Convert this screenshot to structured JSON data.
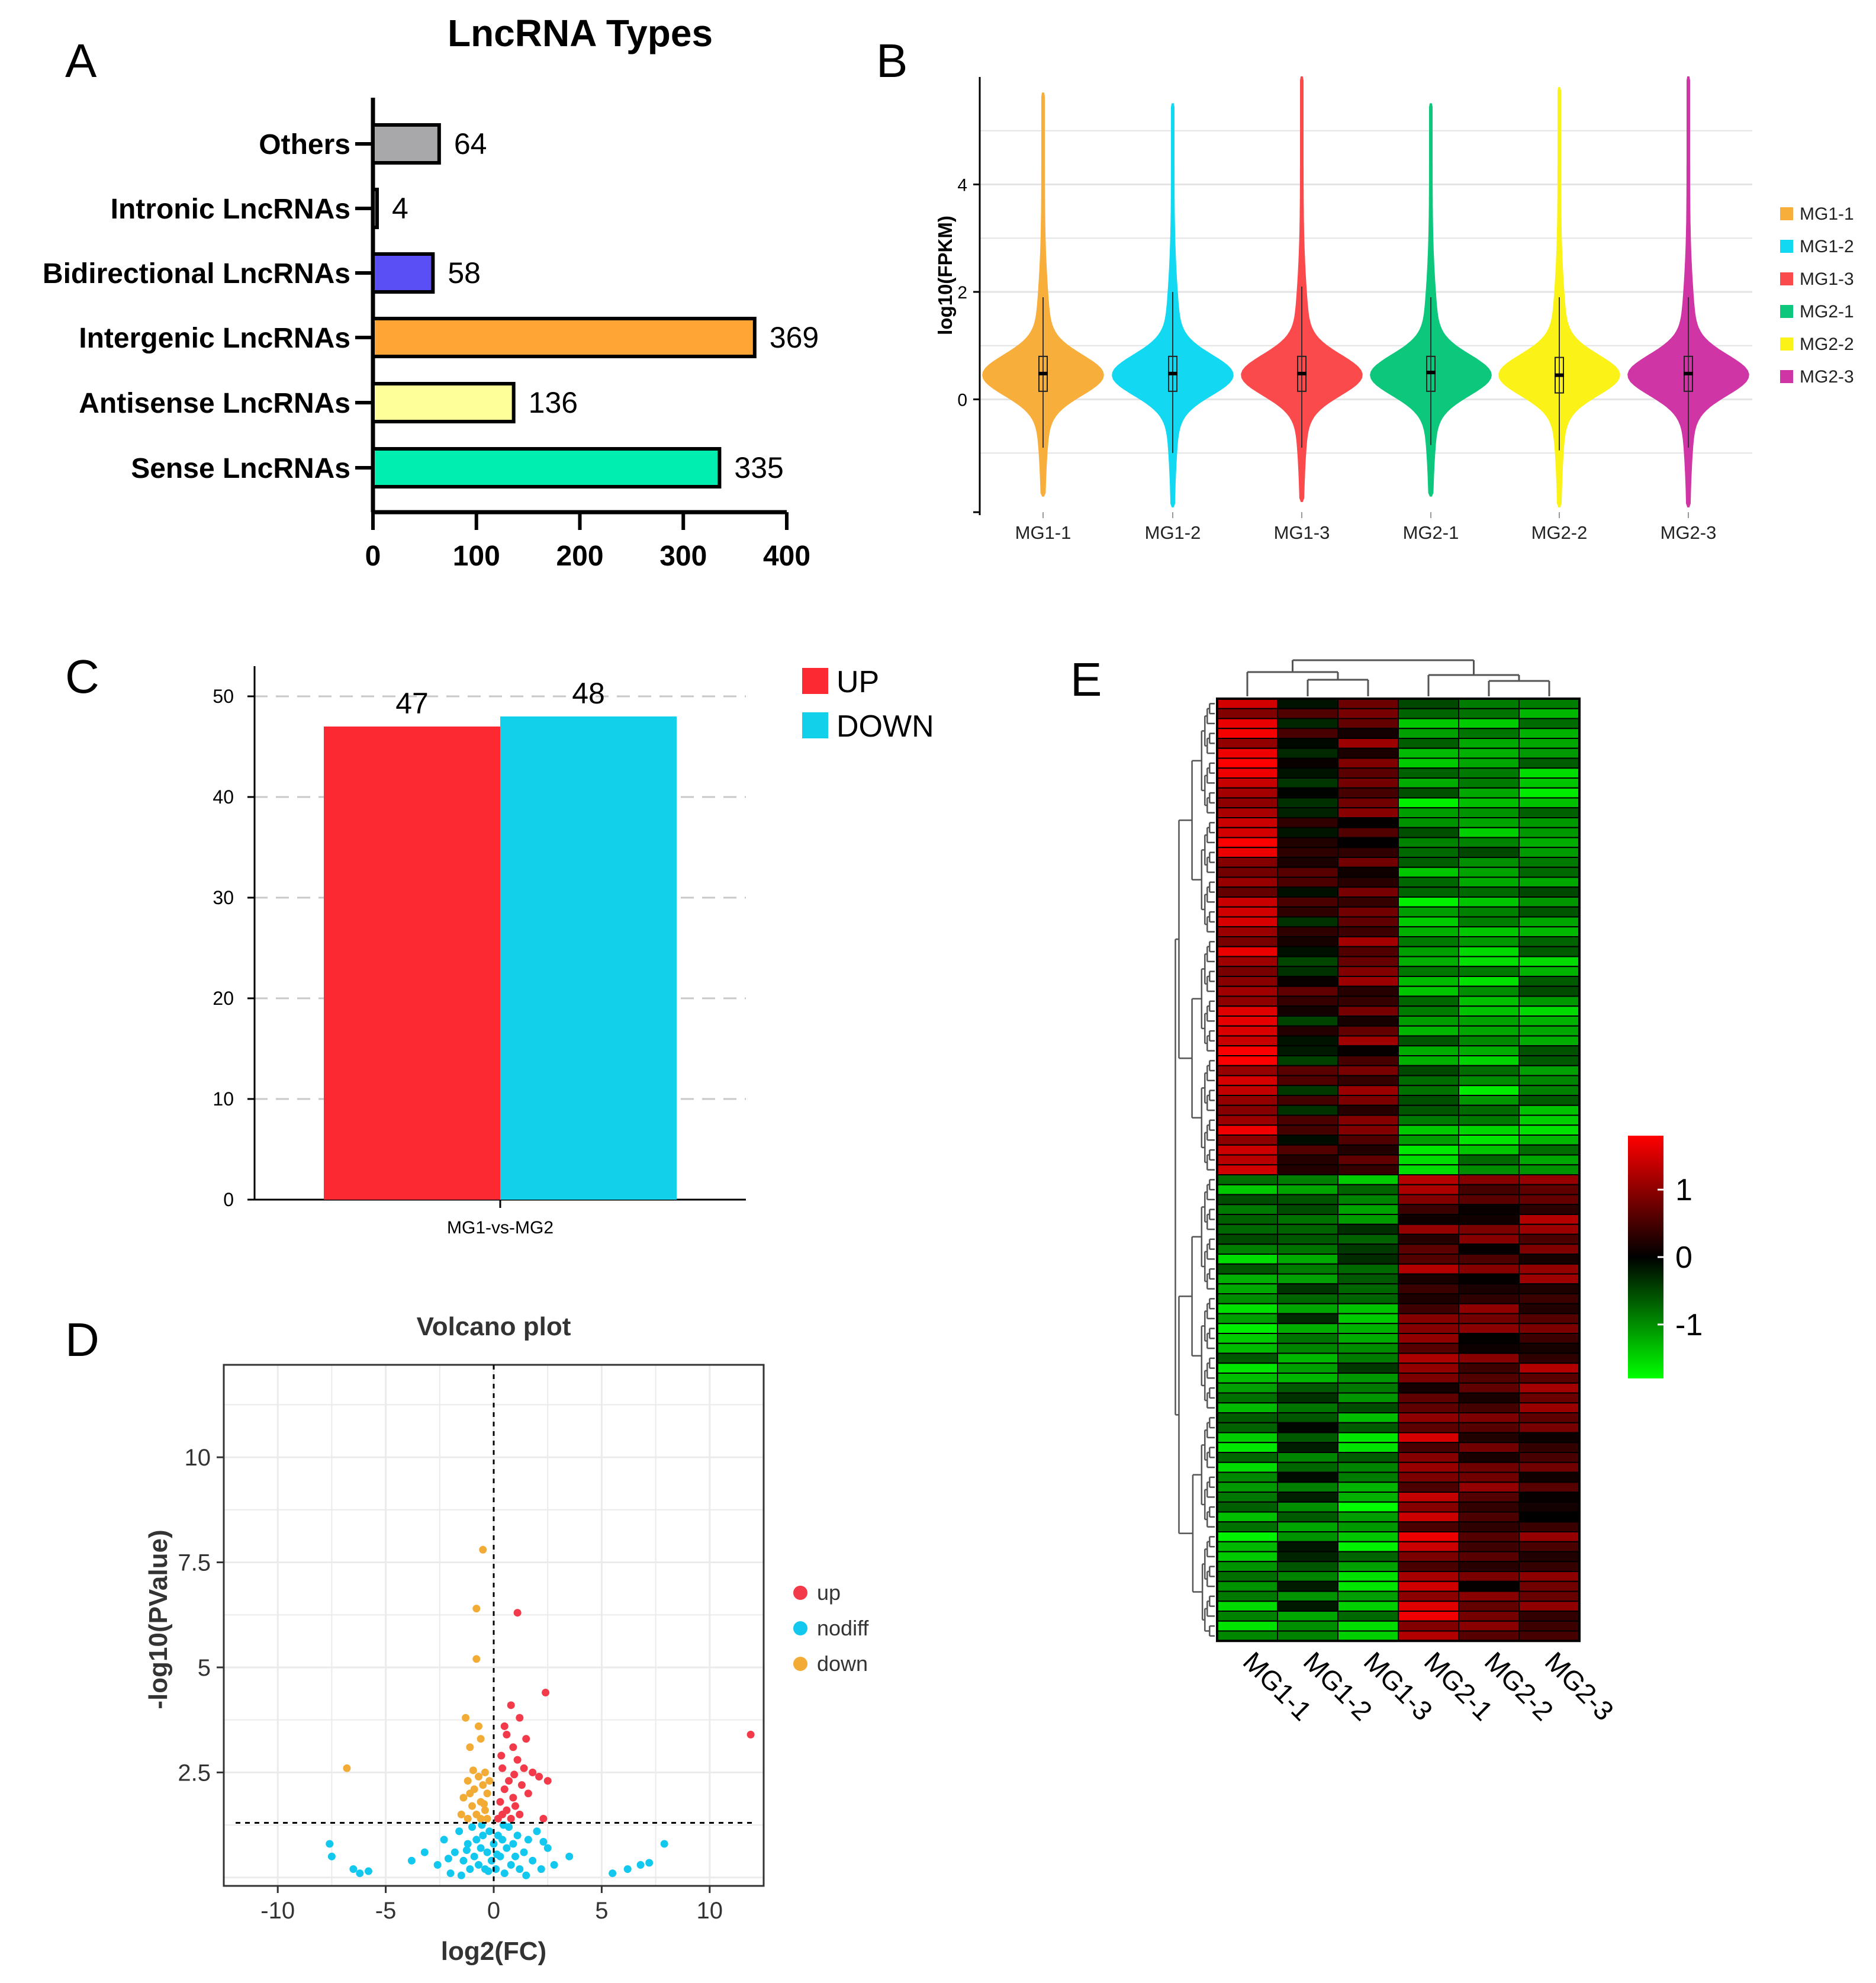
{
  "panel_labels": {
    "a": "A",
    "b": "B",
    "c": "C",
    "d": "D",
    "e": "E"
  },
  "chart_data": [
    {
      "panel": "A",
      "type": "bar",
      "orientation": "horizontal",
      "title": "LncRNA Types",
      "categories": [
        "Others",
        "Intronic LncRNAs",
        "Bidirectional LncRNAs",
        "Intergenic LncRNAs",
        "Antisense LncRNAs",
        "Sense LncRNAs"
      ],
      "values": [
        64,
        4,
        58,
        369,
        136,
        335
      ],
      "colors": [
        "#a8a8aa",
        "#a0a0a0",
        "#5a4ff5",
        "#ffa535",
        "#ffff99",
        "#00eeb0"
      ],
      "xlim": [
        0,
        400
      ],
      "xticks": [
        0,
        100,
        200,
        300,
        400
      ],
      "xlabel": "",
      "ylabel": ""
    },
    {
      "panel": "B",
      "type": "violin",
      "title": "",
      "ylabel": "log10(FPKM)",
      "ylim": [
        -2.1,
        6.0
      ],
      "yticks": [
        0,
        2,
        4
      ],
      "categories": [
        "MG1-1",
        "MG1-2",
        "MG1-3",
        "MG2-1",
        "MG2-2",
        "MG2-3"
      ],
      "colors": [
        "#f8ae3a",
        "#12d8f2",
        "#fb4a4c",
        "#0dc77c",
        "#fbf217",
        "#d035a5"
      ],
      "medians": [
        0.48,
        0.48,
        0.48,
        0.5,
        0.45,
        0.48
      ],
      "q1": [
        0.15,
        0.15,
        0.15,
        0.15,
        0.12,
        0.15
      ],
      "q3": [
        0.8,
        0.8,
        0.8,
        0.8,
        0.78,
        0.8
      ],
      "whisker_low": [
        -0.9,
        -1.0,
        -0.9,
        -0.85,
        -0.95,
        -0.9
      ],
      "whisker_high": [
        1.9,
        2.0,
        2.1,
        1.9,
        1.9,
        1.9
      ],
      "min": [
        -1.8,
        -2.0,
        -1.9,
        -1.8,
        -2.0,
        -2.0
      ],
      "max": [
        5.7,
        5.5,
        6.0,
        5.5,
        5.8,
        6.0
      ],
      "legend_position": "right"
    },
    {
      "panel": "C",
      "type": "bar",
      "title": "",
      "categories": [
        "MG1-vs-MG2"
      ],
      "series": [
        {
          "name": "UP",
          "values": [
            47
          ],
          "color": "#fc2832"
        },
        {
          "name": "DOWN",
          "values": [
            48
          ],
          "color": "#12cfea"
        }
      ],
      "ylim": [
        0,
        53
      ],
      "yticks": [
        0,
        10,
        20,
        30,
        40,
        50
      ],
      "grid": "dashed horizontal",
      "legend_position": "top-right"
    },
    {
      "panel": "D",
      "type": "scatter",
      "title": "Volcano plot",
      "xlabel": "log2(FC)",
      "ylabel": "-log10(PValue)",
      "xlim": [
        -12.5,
        12.5
      ],
      "ylim": [
        -0.2,
        12.2
      ],
      "xticks": [
        -10,
        -5,
        0,
        5,
        10
      ],
      "yticks": [
        2.5,
        5,
        7.5,
        10
      ],
      "ytick_labels": [
        "2.5",
        "5",
        "7.5",
        "10"
      ],
      "thresholds": {
        "x": 0,
        "y": 1.3
      },
      "legend": [
        {
          "name": "up",
          "color": "#f23a4a"
        },
        {
          "name": "nodiff",
          "color": "#12c8ee"
        },
        {
          "name": "down",
          "color": "#f2ac35"
        }
      ],
      "series": [
        {
          "name": "up",
          "color": "#f23a4a",
          "points": [
            [
              11.9,
              3.4
            ],
            [
              1.1,
              6.3
            ],
            [
              2.4,
              4.4
            ],
            [
              0.8,
              4.1
            ],
            [
              1.2,
              3.8
            ],
            [
              0.5,
              3.6
            ],
            [
              1.5,
              3.3
            ],
            [
              0.9,
              3.1
            ],
            [
              0.6,
              3.4
            ],
            [
              1.1,
              2.8
            ],
            [
              0.4,
              2.6
            ],
            [
              1.8,
              2.5
            ],
            [
              2.1,
              2.4
            ],
            [
              2.5,
              2.3
            ],
            [
              0.7,
              2.3
            ],
            [
              1.3,
              2.2
            ],
            [
              0.5,
              2.1
            ],
            [
              1.6,
              2.0
            ],
            [
              0.9,
              1.9
            ],
            [
              0.3,
              1.8
            ],
            [
              1.0,
              1.7
            ],
            [
              0.6,
              1.6
            ],
            [
              0.4,
              1.5
            ],
            [
              1.2,
              1.5
            ],
            [
              2.3,
              1.4
            ],
            [
              0.8,
              1.4
            ],
            [
              0.2,
              1.4
            ],
            [
              1.4,
              2.6
            ],
            [
              0.35,
              2.9
            ],
            [
              0.95,
              2.45
            ]
          ]
        },
        {
          "name": "down",
          "color": "#f2ac35",
          "points": [
            [
              -0.5,
              7.8
            ],
            [
              -0.8,
              6.4
            ],
            [
              -0.8,
              5.2
            ],
            [
              -1.3,
              3.8
            ],
            [
              -0.7,
              3.6
            ],
            [
              -0.6,
              3.3
            ],
            [
              -1.1,
              3.1
            ],
            [
              -6.8,
              2.6
            ],
            [
              -0.4,
              2.5
            ],
            [
              -0.7,
              2.4
            ],
            [
              -1.2,
              2.3
            ],
            [
              -0.5,
              2.2
            ],
            [
              -0.9,
              2.1
            ],
            [
              -0.3,
              2.0
            ],
            [
              -1.4,
              1.9
            ],
            [
              -0.6,
              1.8
            ],
            [
              -1.0,
              1.7
            ],
            [
              -0.4,
              1.6
            ],
            [
              -1.5,
              1.5
            ],
            [
              -0.8,
              1.5
            ],
            [
              -0.3,
              1.4
            ],
            [
              -1.2,
              1.4
            ],
            [
              -0.6,
              1.4
            ],
            [
              -0.2,
              2.3
            ],
            [
              -0.95,
              2.55
            ],
            [
              -0.45,
              1.75
            ],
            [
              -1.1,
              2.0
            ]
          ]
        },
        {
          "name": "nodiff",
          "color": "#12c8ee",
          "points": [
            [
              -7.6,
              0.8
            ],
            [
              -7.5,
              0.5
            ],
            [
              -6.5,
              0.2
            ],
            [
              -6.2,
              0.1
            ],
            [
              -5.8,
              0.15
            ],
            [
              -3.8,
              0.4
            ],
            [
              -3.2,
              0.6
            ],
            [
              -2.6,
              0.3
            ],
            [
              -2.3,
              0.9
            ],
            [
              -2.0,
              0.1
            ],
            [
              -1.8,
              0.6
            ],
            [
              -1.6,
              1.1
            ],
            [
              -1.4,
              0.4
            ],
            [
              -1.2,
              0.8
            ],
            [
              -1.1,
              0.2
            ],
            [
              -1.0,
              1.2
            ],
            [
              -0.9,
              0.5
            ],
            [
              -0.8,
              0.9
            ],
            [
              -0.7,
              0.3
            ],
            [
              -0.6,
              0.7
            ],
            [
              -0.5,
              1.0
            ],
            [
              -0.4,
              0.2
            ],
            [
              -0.3,
              0.6
            ],
            [
              -0.2,
              1.1
            ],
            [
              -0.1,
              0.4
            ],
            [
              0.0,
              0.8
            ],
            [
              0.1,
              0.2
            ],
            [
              0.2,
              1.0
            ],
            [
              0.3,
              0.5
            ],
            [
              0.4,
              0.9
            ],
            [
              0.5,
              0.1
            ],
            [
              0.6,
              0.7
            ],
            [
              0.7,
              1.2
            ],
            [
              0.8,
              0.3
            ],
            [
              0.9,
              0.8
            ],
            [
              1.0,
              0.5
            ],
            [
              1.1,
              1.0
            ],
            [
              1.2,
              0.2
            ],
            [
              1.4,
              0.6
            ],
            [
              1.6,
              0.9
            ],
            [
              1.8,
              0.4
            ],
            [
              2.0,
              1.1
            ],
            [
              2.2,
              0.2
            ],
            [
              2.5,
              0.7
            ],
            [
              2.8,
              0.3
            ],
            [
              3.5,
              0.5
            ],
            [
              5.5,
              0.1
            ],
            [
              6.2,
              0.2
            ],
            [
              6.8,
              0.3
            ],
            [
              7.2,
              0.35
            ],
            [
              7.9,
              0.8
            ],
            [
              -1.5,
              0.05
            ],
            [
              1.5,
              0.05
            ],
            [
              -0.25,
              0.15
            ],
            [
              0.15,
              0.55
            ],
            [
              -0.55,
              1.25
            ],
            [
              0.45,
              1.25
            ],
            [
              -2.1,
              0.45
            ],
            [
              2.3,
              0.85
            ],
            [
              -1.25,
              0.65
            ]
          ]
        }
      ]
    },
    {
      "panel": "E",
      "type": "heatmap",
      "title": "",
      "columns": [
        "MG1-1",
        "MG1-2",
        "MG1-3",
        "MG2-1",
        "MG2-2",
        "MG2-3"
      ],
      "row_count": 95,
      "colorbar_ticks": [
        "1",
        "0",
        "-1"
      ],
      "color_range": [
        -1.8,
        1.8
      ],
      "colormap": [
        "#00ff00",
        "#000000",
        "#ff0000"
      ],
      "row_clusters": [
        {
          "count": 48,
          "means": [
            1.3,
            0.1,
            0.6,
            -1.1,
            -1.1,
            -1.1
          ]
        },
        {
          "count": 24,
          "means": [
            -1.1,
            -0.8,
            -0.9,
            0.7,
            0.6,
            0.7
          ]
        },
        {
          "count": 23,
          "means": [
            -1.2,
            -0.6,
            -1.2,
            1.1,
            0.5,
            0.6
          ]
        }
      ]
    }
  ]
}
